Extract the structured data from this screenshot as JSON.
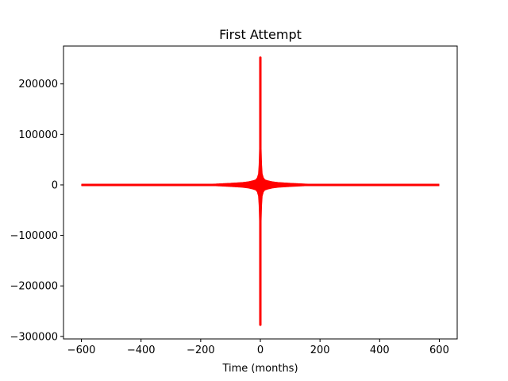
{
  "chart_data": {
    "type": "line",
    "title": "First Attempt",
    "xlabel": "Time (months)",
    "ylabel": "",
    "xlim": [
      -660,
      660
    ],
    "ylim": [
      -305000,
      275000
    ],
    "xticks": [
      -600,
      -400,
      -200,
      0,
      200,
      400,
      600
    ],
    "xtick_labels": [
      "−600",
      "−400",
      "−200",
      "0",
      "200",
      "400",
      "600"
    ],
    "yticks": [
      -300000,
      -200000,
      -100000,
      0,
      100000,
      200000
    ],
    "ytick_labels": [
      "−300000",
      "−200000",
      "−100000",
      "0",
      "100000",
      "200000"
    ],
    "grid": false,
    "legend": "none",
    "series": [
      {
        "color": "#ff0000",
        "envelope": {
          "x": [
            -600,
            -250,
            -150,
            -100,
            -60,
            -40,
            -25,
            -15,
            -10,
            -6,
            -4,
            -2,
            -1,
            0,
            1,
            2,
            4,
            6,
            10,
            15,
            25,
            40,
            60,
            100,
            150,
            250,
            600
          ],
          "upper": [
            500,
            800,
            1500,
            3000,
            4500,
            6000,
            8000,
            10000,
            14000,
            22000,
            40000,
            80000,
            150000,
            252000,
            150000,
            80000,
            40000,
            22000,
            14000,
            10000,
            8000,
            6000,
            4500,
            3000,
            1500,
            800,
            500
          ],
          "lower": [
            -500,
            -800,
            -1500,
            -3000,
            -4500,
            -6000,
            -8000,
            -10000,
            -14000,
            -22000,
            -40000,
            -80000,
            -160000,
            -277000,
            -160000,
            -80000,
            -40000,
            -22000,
            -14000,
            -10000,
            -8000,
            -6000,
            -4500,
            -3000,
            -1500,
            -800,
            -500
          ]
        }
      }
    ]
  }
}
